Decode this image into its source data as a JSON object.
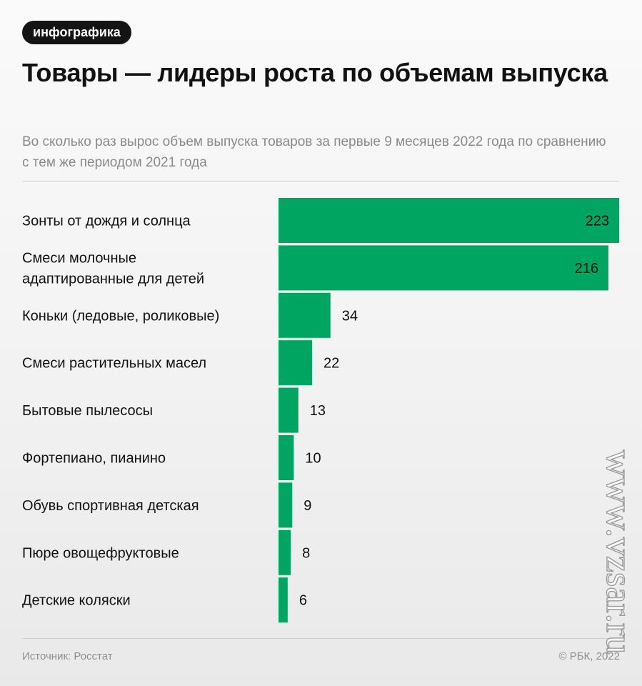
{
  "header": {
    "tag": "инфографика",
    "title": "Товары — лидеры роста по объемам выпуска",
    "subtitle": "Во сколько раз вырос объем выпуска товаров за первые 9 месяцев 2022 года по сравнению с тем же периодом 2021 года"
  },
  "chart_data": {
    "type": "bar",
    "orientation": "horizontal",
    "categories": [
      [
        "Зонты от дождя и солнца"
      ],
      [
        "Смеси молочные",
        "адаптированные для детей"
      ],
      [
        "Коньки (ледовые, роликовые)"
      ],
      [
        "Смеси растительных масел"
      ],
      [
        "Бытовые пылесосы"
      ],
      [
        "Фортепиано, пианино"
      ],
      [
        "Обувь спортивная детская"
      ],
      [
        "Пюре овощефруктовые"
      ],
      [
        "Детские коляски"
      ]
    ],
    "values": [
      223,
      216,
      34,
      22,
      13,
      10,
      9,
      8,
      6
    ],
    "xlim": [
      0,
      223
    ],
    "grid": false,
    "bar_color": "#00a562"
  },
  "footer": {
    "source": "Источник: Росстат",
    "copyright": "© РБК, 2022"
  },
  "watermark": "www.vzsar.ru"
}
